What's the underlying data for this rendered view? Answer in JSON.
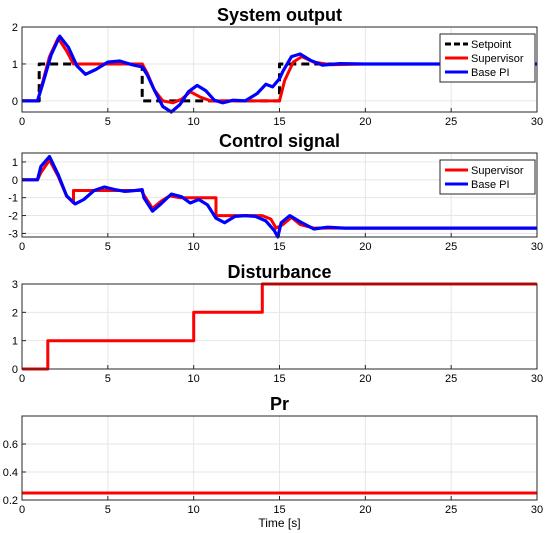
{
  "chart_data": [
    {
      "type": "line",
      "title": "System output",
      "xlim": [
        0,
        30
      ],
      "ylim": [
        -0.3,
        2
      ],
      "xticks": [
        0,
        5,
        10,
        15,
        20,
        25,
        30
      ],
      "yticks": [
        0,
        1,
        2
      ],
      "grid": true,
      "legend": "top-right",
      "series": [
        {
          "name": "Setpoint",
          "color": "#000000",
          "dash": "8,5",
          "x": [
            0,
            1,
            1,
            7,
            7,
            15,
            15,
            30
          ],
          "y": [
            0,
            0,
            1,
            1,
            0,
            0,
            1,
            1
          ]
        },
        {
          "name": "Supervisor",
          "color": "#ff0000",
          "x": [
            0,
            0.9,
            1.2,
            1.6,
            2.1,
            2.6,
            3.0,
            7.0,
            7.3,
            7.7,
            8.2,
            8.8,
            9.3,
            9.8,
            10.4,
            11.0,
            15.0,
            15.3,
            15.8,
            16.3,
            17.0,
            18.0,
            20.0,
            30.0
          ],
          "y": [
            0,
            0,
            0.5,
            1.2,
            1.7,
            1.35,
            1.0,
            1.0,
            0.75,
            0.3,
            0.0,
            -0.05,
            0.05,
            0.25,
            0.1,
            0.0,
            0.0,
            0.55,
            1.05,
            1.2,
            1.05,
            0.98,
            1.0,
            1.0
          ]
        },
        {
          "name": "Base PI",
          "color": "#0000ff",
          "x": [
            0,
            0.9,
            1.2,
            1.7,
            2.2,
            2.7,
            3.2,
            3.7,
            4.3,
            5.0,
            5.7,
            6.4,
            7.0,
            7.3,
            7.7,
            8.2,
            8.7,
            9.2,
            9.7,
            10.2,
            10.7,
            11.2,
            11.7,
            12.3,
            13.0,
            13.7,
            14.2,
            14.6,
            15.0,
            15.2,
            15.7,
            16.2,
            16.8,
            17.5,
            18.5,
            20.0,
            30.0
          ],
          "y": [
            0,
            0,
            0.45,
            1.25,
            1.75,
            1.45,
            0.95,
            0.72,
            0.85,
            1.05,
            1.08,
            0.98,
            0.92,
            0.7,
            0.3,
            -0.15,
            -0.3,
            -0.1,
            0.25,
            0.42,
            0.28,
            0.02,
            -0.05,
            0.02,
            0.0,
            0.2,
            0.45,
            0.38,
            0.6,
            0.8,
            1.2,
            1.27,
            1.1,
            0.97,
            1.01,
            1.0,
            1.0
          ]
        }
      ]
    },
    {
      "type": "line",
      "title": "Control signal",
      "xlim": [
        0,
        30
      ],
      "ylim": [
        -3.2,
        1.5
      ],
      "xticks": [
        0,
        5,
        10,
        15,
        20,
        25,
        30
      ],
      "yticks": [
        1,
        0,
        -1,
        -2,
        -3
      ],
      "grid": true,
      "legend": "top-right",
      "series": [
        {
          "name": "Supervisor",
          "color": "#ff0000",
          "x": [
            0,
            0.9,
            1.1,
            1.6,
            2.1,
            2.6,
            3.0,
            3.0,
            7.0,
            7.0,
            7.6,
            8.1,
            8.6,
            9.2,
            9.2,
            11.3,
            11.3,
            13.5,
            14.0,
            14.5,
            14.8,
            15.2,
            15.7,
            16.2,
            17.0,
            17.0,
            30.0
          ],
          "y": [
            0,
            0,
            0.4,
            1.1,
            0.2,
            -0.9,
            -1.3,
            -0.6,
            -0.6,
            -0.7,
            -1.6,
            -1.2,
            -0.9,
            -1.0,
            -1.0,
            -1.0,
            -2.0,
            -2.0,
            -2.0,
            -2.2,
            -2.7,
            -2.5,
            -2.1,
            -2.5,
            -2.7,
            -2.7,
            -2.7
          ]
        },
        {
          "name": "Base PI",
          "color": "#0000ff",
          "x": [
            0,
            0.9,
            1.1,
            1.6,
            2.1,
            2.6,
            3.1,
            3.6,
            4.2,
            4.8,
            5.4,
            6.0,
            6.6,
            7.0,
            7.1,
            7.6,
            8.1,
            8.7,
            9.3,
            9.8,
            10.3,
            10.8,
            11.3,
            11.8,
            12.4,
            13.0,
            13.6,
            14.2,
            14.7,
            14.9,
            15.1,
            15.6,
            16.2,
            17.0,
            17.8,
            18.8,
            20.0,
            30.0
          ],
          "y": [
            0,
            0,
            0.75,
            1.3,
            0.3,
            -0.9,
            -1.35,
            -1.1,
            -0.6,
            -0.4,
            -0.55,
            -0.65,
            -0.6,
            -0.55,
            -1.0,
            -1.75,
            -1.35,
            -0.8,
            -0.95,
            -1.3,
            -1.1,
            -1.4,
            -2.15,
            -2.4,
            -2.05,
            -2.0,
            -2.05,
            -2.3,
            -2.85,
            -3.2,
            -2.4,
            -2.0,
            -2.35,
            -2.75,
            -2.65,
            -2.7,
            -2.7,
            -2.7
          ]
        }
      ]
    },
    {
      "type": "line",
      "title": "Disturbance",
      "xlim": [
        0,
        30
      ],
      "ylim": [
        0,
        3
      ],
      "xticks": [
        0,
        5,
        10,
        15,
        20,
        25,
        30
      ],
      "yticks": [
        0,
        1,
        2,
        3
      ],
      "grid": true,
      "series": [
        {
          "color": "#ff0000",
          "x": [
            0,
            1.5,
            1.5,
            10,
            10,
            14,
            14,
            30
          ],
          "y": [
            0,
            0,
            1,
            1,
            2,
            2,
            3,
            3
          ]
        }
      ]
    },
    {
      "type": "line",
      "title": "Pr",
      "xlim": [
        0,
        30
      ],
      "ylim": [
        0.2,
        0.8
      ],
      "xticks": [
        0,
        5,
        10,
        15,
        20,
        25,
        30
      ],
      "yticks": [
        0.2,
        0.4,
        0.6
      ],
      "grid": true,
      "xlabel": "Time [s]",
      "series": [
        {
          "color": "#ff0000",
          "x": [
            0,
            30
          ],
          "y": [
            0.25,
            0.25
          ]
        }
      ]
    }
  ]
}
